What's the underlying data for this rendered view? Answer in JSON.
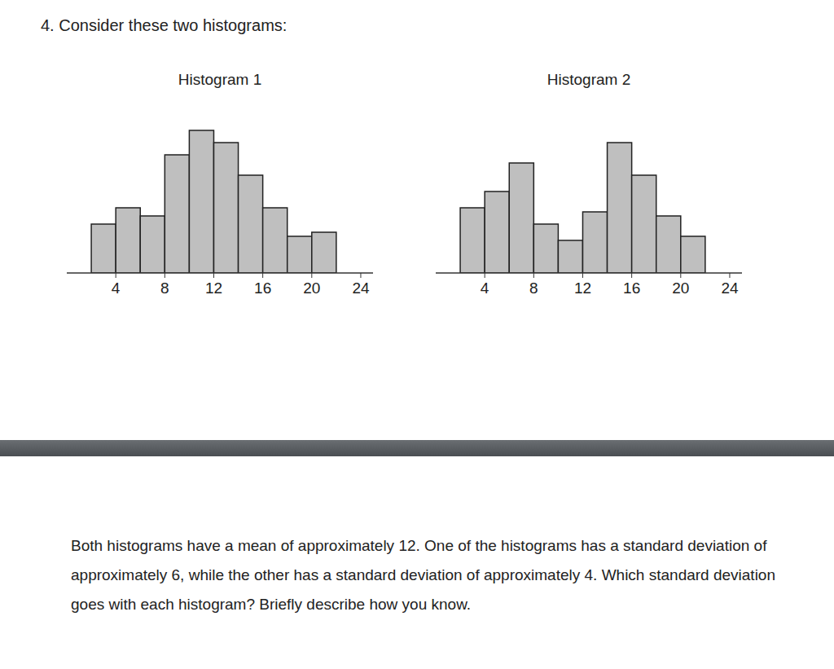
{
  "heading": "4. Consider these two histograms:",
  "chart_data": [
    {
      "type": "histogram",
      "title": "Histogram 1",
      "bins": [
        2,
        4,
        6,
        8,
        10,
        12,
        14,
        16,
        18,
        20,
        22
      ],
      "values": [
        6,
        8,
        7,
        14.5,
        17.5,
        16,
        12,
        8,
        4.5,
        5
      ],
      "color": "#bfbfbf",
      "xlim": [
        0,
        25
      ],
      "xticks": [
        4,
        8,
        12,
        16,
        20,
        24
      ],
      "ylim": [
        0,
        18
      ],
      "tick_labels": "x"
    },
    {
      "type": "histogram",
      "title": "Histogram 2",
      "bins": [
        2,
        4,
        6,
        8,
        10,
        12,
        14,
        16,
        18,
        20,
        22
      ],
      "values": [
        8,
        10,
        13.5,
        6,
        4,
        7.5,
        16,
        12,
        7,
        4.5
      ],
      "color": "#bfbfbf",
      "xlim": [
        0,
        25
      ],
      "xticks": [
        4,
        8,
        12,
        16,
        20,
        24
      ],
      "ylim": [
        0,
        18
      ],
      "tick_labels": "x"
    }
  ],
  "question": "Both histograms have a mean of approximately 12.  One of the histograms has a standard deviation of approximately 6, while the other has a standard deviation of approximately 4.  Which standard deviation goes with each histogram?  Briefly describe how you know."
}
